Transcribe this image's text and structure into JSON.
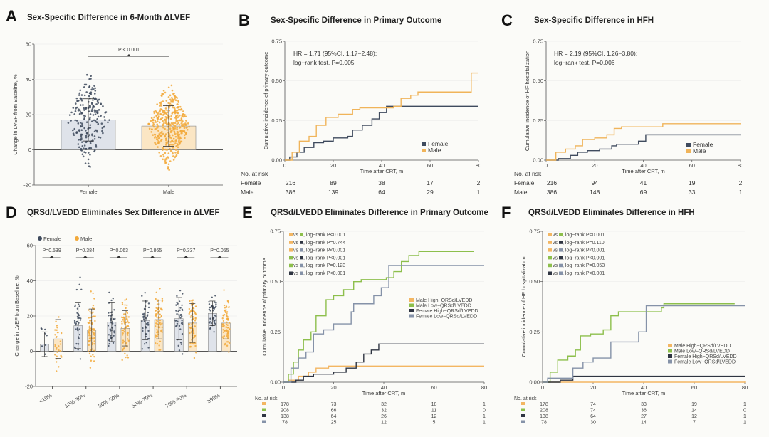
{
  "chart_data": [
    {
      "letter": "A",
      "type": "bar",
      "title": "Sex-Specific Difference in 6-Month ΔLVEF",
      "ylabel": "Change in LVEF from Baseline, %",
      "ylim": [
        -20,
        60
      ],
      "ytick_labels": [
        "-20",
        "0",
        "20",
        "40",
        "60"
      ],
      "categories": [
        "Female",
        "Male"
      ],
      "values": [
        17,
        13.5
      ],
      "sd": [
        12,
        11.5
      ],
      "colors": [
        "#3f4b5e",
        "#f2a93b"
      ],
      "bar_fill": [
        "#dfe3ea",
        "#fbe6c4"
      ],
      "annotation": "P < 0.001",
      "grid": true
    },
    {
      "letter": "B",
      "type": "line",
      "title": "Sex-Specific Difference in Primary Outcome",
      "xlabel": "Time after CRT, m",
      "ylabel": "Cumulative incidence of primary outcome",
      "xlim": [
        0,
        80
      ],
      "ylim": [
        0,
        0.75
      ],
      "xtick_labels": [
        "0",
        "20",
        "40",
        "60",
        "80"
      ],
      "ytick_labels": [
        "0.00",
        "0.25",
        "0.50",
        "0.75"
      ],
      "annotation": [
        "HR = 1.71 (95%CI, 1.17−2.48);",
        "log−rank test, P=0.005"
      ],
      "series": [
        {
          "name": "Female",
          "color": "#3f4b5e",
          "points": [
            [
              0,
              0
            ],
            [
              2,
              0.02
            ],
            [
              5,
              0.05
            ],
            [
              8,
              0.08
            ],
            [
              12,
              0.11
            ],
            [
              16,
              0.12
            ],
            [
              20,
              0.14
            ],
            [
              26,
              0.15
            ],
            [
              28,
              0.19
            ],
            [
              32,
              0.22
            ],
            [
              36,
              0.26
            ],
            [
              39,
              0.3
            ],
            [
              42,
              0.34
            ],
            [
              80,
              0.34
            ]
          ]
        },
        {
          "name": "Male",
          "color": "#f0b45a",
          "points": [
            [
              0,
              0
            ],
            [
              3,
              0.05
            ],
            [
              6,
              0.12
            ],
            [
              10,
              0.15
            ],
            [
              13,
              0.22
            ],
            [
              17,
              0.27
            ],
            [
              22,
              0.29
            ],
            [
              28,
              0.32
            ],
            [
              31,
              0.33
            ],
            [
              45,
              0.34
            ],
            [
              48,
              0.39
            ],
            [
              52,
              0.41
            ],
            [
              55,
              0.43
            ],
            [
              77,
              0.43
            ],
            [
              77,
              0.55
            ],
            [
              80,
              0.55
            ]
          ]
        }
      ],
      "risk": {
        "title": "No. at risk",
        "rows": [
          {
            "label": "Female",
            "values": [
              "216",
              "89",
              "38",
              "17",
              "2"
            ]
          },
          {
            "label": "Male",
            "values": [
              "386",
              "139",
              "64",
              "29",
              "1"
            ]
          }
        ]
      }
    },
    {
      "letter": "C",
      "type": "line",
      "title": "Sex-Specific Difference in HFH",
      "xlabel": "Time after CRT, m",
      "ylabel": "Cumulative incidence of HF hospitalization",
      "xlim": [
        0,
        80
      ],
      "ylim": [
        0,
        0.75
      ],
      "xtick_labels": [
        "0",
        "20",
        "40",
        "60",
        "80"
      ],
      "ytick_labels": [
        "0.00",
        "0.25",
        "0.50",
        "0.75"
      ],
      "annotation": [
        "HR = 2.19 (95%CI, 1.26−3.80);",
        "log−rank test, P=0.006"
      ],
      "series": [
        {
          "name": "Female",
          "color": "#3f4b5e",
          "points": [
            [
              0,
              0
            ],
            [
              5,
              0.01
            ],
            [
              10,
              0.03
            ],
            [
              13,
              0.05
            ],
            [
              17,
              0.06
            ],
            [
              22,
              0.07
            ],
            [
              27,
              0.09
            ],
            [
              29,
              0.1
            ],
            [
              38,
              0.12
            ],
            [
              41,
              0.16
            ],
            [
              80,
              0.16
            ]
          ]
        },
        {
          "name": "Male",
          "color": "#f0b45a",
          "points": [
            [
              0,
              0
            ],
            [
              4,
              0.05
            ],
            [
              8,
              0.07
            ],
            [
              12,
              0.09
            ],
            [
              15,
              0.13
            ],
            [
              20,
              0.14
            ],
            [
              25,
              0.16
            ],
            [
              28,
              0.2
            ],
            [
              31,
              0.21
            ],
            [
              45,
              0.21
            ],
            [
              48,
              0.23
            ],
            [
              80,
              0.23
            ]
          ]
        }
      ],
      "risk": {
        "title": "No. at risk",
        "rows": [
          {
            "label": "Female",
            "values": [
              "216",
              "94",
              "41",
              "19",
              "2"
            ]
          },
          {
            "label": "Male",
            "values": [
              "386",
              "148",
              "69",
              "33",
              "1"
            ]
          }
        ]
      }
    },
    {
      "letter": "D",
      "type": "bar",
      "title": "QRSd/LVEDD Eliminates Sex Difference in ΔLVEF",
      "ylabel": "Change in LVEF from Baseline, %",
      "ylim": [
        -20,
        60
      ],
      "ytick_labels": [
        "-20",
        "0",
        "20",
        "40",
        "60"
      ],
      "categories": [
        "<10%",
        "10%-30%",
        "30%-50%",
        "50%-70%",
        "70%-90%",
        "≥90%"
      ],
      "series": [
        {
          "name": "Female",
          "color": "#3f4b5e",
          "fill": "#dfe3ea",
          "values": [
            4,
            14.5,
            16.5,
            17.5,
            18.5,
            21.5
          ],
          "sd": [
            7,
            13,
            11,
            11,
            12,
            7
          ]
        },
        {
          "name": "Male",
          "color": "#f2a93b",
          "fill": "#fbe6c4",
          "values": [
            7,
            12,
            13,
            18,
            16,
            16
          ],
          "sd": [
            11,
            12,
            10,
            11,
            11,
            9
          ]
        }
      ],
      "pvalues": [
        "P=0.539",
        "P=0.384",
        "P=0.063",
        "P=0.865",
        "P=0.337",
        "P=0.055"
      ],
      "legend": "top-left",
      "grid": true
    },
    {
      "letter": "E",
      "type": "line",
      "title": "QRSd/LVEDD Eliminates Difference in Primary Outcome",
      "xlabel": "Time after CRT, m",
      "ylabel": "Cumulative incidence of primary outcome",
      "xlim": [
        0,
        80
      ],
      "ylim": [
        0,
        0.75
      ],
      "xtick_labels": [
        "0",
        "20",
        "40",
        "60",
        "80"
      ],
      "ytick_labels": [
        "0.00",
        "0.25",
        "0.50",
        "0.75"
      ],
      "vs_label": "vs",
      "comparisons": [
        {
          "a": 0,
          "b": 1,
          "text": ", log−rank P<0.001"
        },
        {
          "a": 0,
          "b": 2,
          "text": ", log−rank P=0.744"
        },
        {
          "a": 0,
          "b": 3,
          "text": ", log−rank P<0.001"
        },
        {
          "a": 1,
          "b": 2,
          "text": ", log−rank P<0.001"
        },
        {
          "a": 1,
          "b": 3,
          "text": ", log−rank P=0.123"
        },
        {
          "a": 2,
          "b": 3,
          "text": ", log−rank P<0.001"
        }
      ],
      "series": [
        {
          "name": "Male High−QRSd/LVEDD",
          "color": "#f3b662",
          "points": [
            [
              0,
              0
            ],
            [
              2,
              0.01
            ],
            [
              6,
              0.03
            ],
            [
              10,
              0.05
            ],
            [
              13,
              0.07
            ],
            [
              18,
              0.08
            ],
            [
              80,
              0.08
            ]
          ]
        },
        {
          "name": "Male Low−QRSd/LVEDD",
          "color": "#8dbf4c",
          "points": [
            [
              0,
              0
            ],
            [
              2,
              0.04
            ],
            [
              4,
              0.1
            ],
            [
              6,
              0.16
            ],
            [
              8,
              0.21
            ],
            [
              11,
              0.25
            ],
            [
              13,
              0.33
            ],
            [
              17,
              0.41
            ],
            [
              20,
              0.43
            ],
            [
              24,
              0.46
            ],
            [
              28,
              0.5
            ],
            [
              31,
              0.51
            ],
            [
              41,
              0.52
            ],
            [
              44,
              0.55
            ],
            [
              47,
              0.6
            ],
            [
              50,
              0.63
            ],
            [
              54,
              0.65
            ],
            [
              76,
              0.65
            ]
          ]
        },
        {
          "name": "Female High−QRSd/LVEDD",
          "color": "#2f3542",
          "points": [
            [
              0,
              0
            ],
            [
              5,
              0.01
            ],
            [
              8,
              0.03
            ],
            [
              12,
              0.04
            ],
            [
              20,
              0.05
            ],
            [
              25,
              0.07
            ],
            [
              29,
              0.1
            ],
            [
              32,
              0.14
            ],
            [
              35,
              0.16
            ],
            [
              38,
              0.19
            ],
            [
              80,
              0.19
            ]
          ]
        },
        {
          "name": "Female Low−QRSd/LVEDD",
          "color": "#8592a8",
          "points": [
            [
              0,
              0
            ],
            [
              3,
              0.07
            ],
            [
              6,
              0.12
            ],
            [
              9,
              0.15
            ],
            [
              12,
              0.24
            ],
            [
              16,
              0.26
            ],
            [
              20,
              0.29
            ],
            [
              27,
              0.35
            ],
            [
              28,
              0.39
            ],
            [
              36,
              0.43
            ],
            [
              39,
              0.47
            ],
            [
              42,
              0.58
            ],
            [
              80,
              0.58
            ]
          ]
        }
      ],
      "risk": {
        "title": "No. at risk",
        "rows": [
          {
            "values": [
              "178",
              "73",
              "32",
              "18",
              "1"
            ]
          },
          {
            "values": [
              "208",
              "66",
              "32",
              "11",
              "0"
            ]
          },
          {
            "values": [
              "138",
              "64",
              "26",
              "12",
              "1"
            ]
          },
          {
            "values": [
              "78",
              "25",
              "12",
              "5",
              "1"
            ]
          }
        ]
      }
    },
    {
      "letter": "F",
      "type": "line",
      "title": "QRSd/LVEDD Eliminates Difference in HFH",
      "xlabel": "Time after CRT, m",
      "ylabel": "Cumulative incidence of HF hospitalization",
      "xlim": [
        0,
        80
      ],
      "ylim": [
        0,
        0.75
      ],
      "xtick_labels": [
        "0",
        "20",
        "40",
        "60",
        "80"
      ],
      "ytick_labels": [
        "0.00",
        "0.25",
        "0.50",
        "0.75"
      ],
      "vs_label": "vs",
      "comparisons": [
        {
          "a": 0,
          "b": 1,
          "text": ", log−rank P<0.001"
        },
        {
          "a": 0,
          "b": 2,
          "text": ", log−rank P=0.110"
        },
        {
          "a": 0,
          "b": 3,
          "text": ", log−rank P<0.001"
        },
        {
          "a": 1,
          "b": 2,
          "text": ", log−rank P<0.001"
        },
        {
          "a": 1,
          "b": 3,
          "text": ", log−rank P=0.053"
        },
        {
          "a": 2,
          "b": 3,
          "text": ", log−rank P<0.001"
        }
      ],
      "series": [
        {
          "name": "Male High−QRSd/LVEDD",
          "color": "#f3b662",
          "points": [
            [
              0,
              0
            ],
            [
              80,
              0.003
            ]
          ]
        },
        {
          "name": "Male Low−QRSd/LVEDD",
          "color": "#8dbf4c",
          "points": [
            [
              0,
              0
            ],
            [
              3,
              0.05
            ],
            [
              6,
              0.11
            ],
            [
              10,
              0.13
            ],
            [
              13,
              0.16
            ],
            [
              15,
              0.23
            ],
            [
              19,
              0.24
            ],
            [
              24,
              0.26
            ],
            [
              27,
              0.33
            ],
            [
              30,
              0.35
            ],
            [
              47,
              0.37
            ],
            [
              48,
              0.39
            ],
            [
              76,
              0.39
            ]
          ]
        },
        {
          "name": "Female High−QRSd/LVEDD",
          "color": "#2f3542",
          "points": [
            [
              0,
              0
            ],
            [
              7,
              0.01
            ],
            [
              12,
              0.03
            ],
            [
              80,
              0.03
            ]
          ]
        },
        {
          "name": "Female Low−QRSd/LVEDD",
          "color": "#8592a8",
          "points": [
            [
              0,
              0
            ],
            [
              2,
              0.02
            ],
            [
              12,
              0.07
            ],
            [
              16,
              0.1
            ],
            [
              20,
              0.12
            ],
            [
              27,
              0.2
            ],
            [
              38,
              0.25
            ],
            [
              41,
              0.38
            ],
            [
              80,
              0.38
            ]
          ]
        }
      ],
      "risk": {
        "title": "No. at risk",
        "rows": [
          {
            "values": [
              "178",
              "74",
              "33",
              "19",
              "1"
            ]
          },
          {
            "values": [
              "208",
              "74",
              "36",
              "14",
              "0"
            ]
          },
          {
            "values": [
              "138",
              "64",
              "27",
              "12",
              "1"
            ]
          },
          {
            "values": [
              "78",
              "30",
              "14",
              "7",
              "1"
            ]
          }
        ]
      }
    }
  ]
}
